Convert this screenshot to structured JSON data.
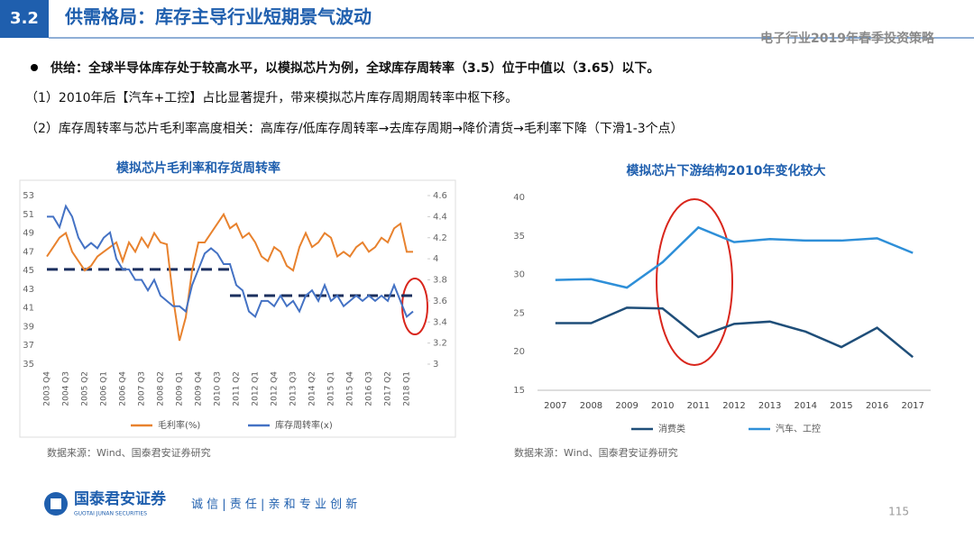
{
  "header": {
    "section_number": "3.2",
    "title": "供需格局：库存主导行业短期景气波动",
    "subtitle": "电子行业2019年春季投资策略"
  },
  "bullets": [
    "供给：全球半导体库存处于较高水平，以模拟芯片为例，全球库存周转率（3.5）位于中值以（3.65）以下。",
    "（1）2010年后【汽车+工控】占比显著提升，带来模拟芯片库存周期周转率中枢下移。",
    "（2）库存周转率与芯片毛利率高度相关：高库存/低库存周转率→去库存周期→降价清货→毛利率下降（下滑1-3个点）"
  ],
  "chart_data": [
    {
      "type": "line",
      "title": "模拟芯片毛利率和存货周转率",
      "categories": [
        "2003 Q4",
        null,
        null,
        "2004 Q3",
        null,
        null,
        "2005 Q2",
        null,
        null,
        "2006 Q1",
        null,
        null,
        "2006 Q4",
        null,
        null,
        "2007 Q3",
        null,
        null,
        "2008 Q2",
        null,
        null,
        "2009 Q1",
        null,
        null,
        "2009 Q4",
        null,
        null,
        "2010 Q3",
        null,
        null,
        "2011 Q2",
        null,
        null,
        "2012 Q1",
        null,
        null,
        "2012 Q4",
        null,
        null,
        "2013 Q3",
        null,
        null,
        "2014 Q2",
        null,
        null,
        "2015 Q1",
        null,
        null,
        "2015 Q4",
        null,
        null,
        "2016 Q3",
        null,
        null,
        "2017 Q2",
        null,
        null,
        "2018 Q1",
        null
      ],
      "series": [
        {
          "name": "毛利率(%)",
          "color": "#e8822e",
          "values": [
            46.5,
            47.5,
            48.5,
            49,
            47,
            46,
            45,
            45.5,
            46.5,
            47,
            47.5,
            48,
            46,
            48,
            47,
            48.5,
            47.5,
            49,
            48,
            47.8,
            42,
            37.5,
            40,
            45,
            48,
            48,
            49,
            50,
            51,
            49.5,
            50,
            48.5,
            49,
            48,
            46.5,
            46,
            47.5,
            47,
            45.5,
            45,
            47.5,
            49,
            47.5,
            48,
            49,
            48.5,
            46.5,
            47,
            46.5,
            47.5,
            48,
            47,
            47.5,
            48.5,
            48,
            49.5,
            50,
            47,
            47
          ]
        },
        {
          "name": "库存周转率(x)",
          "color": "#4472c4",
          "axis": "y2",
          "values": [
            4.4,
            4.4,
            4.3,
            4.5,
            4.4,
            4.2,
            4.1,
            4.15,
            4.1,
            4.2,
            4.25,
            4.0,
            3.9,
            3.9,
            3.8,
            3.8,
            3.7,
            3.8,
            3.65,
            3.6,
            3.55,
            3.55,
            3.5,
            3.75,
            3.9,
            4.05,
            4.1,
            4.05,
            3.95,
            3.95,
            3.75,
            3.7,
            3.5,
            3.45,
            3.6,
            3.6,
            3.55,
            3.65,
            3.55,
            3.6,
            3.5,
            3.65,
            3.7,
            3.6,
            3.75,
            3.6,
            3.65,
            3.55,
            3.6,
            3.65,
            3.6,
            3.65,
            3.6,
            3.65,
            3.6,
            3.75,
            3.6,
            3.45,
            3.5
          ]
        }
      ],
      "reference_lines": [
        {
          "value": 3.9,
          "axis": "y2",
          "from": 0,
          "to": 29
        },
        {
          "value": 3.65,
          "axis": "y2",
          "from": 29,
          "to": 58
        }
      ],
      "ylim": [
        35,
        53
      ],
      "yticks": [
        35,
        37,
        39,
        41,
        43,
        45,
        47,
        49,
        51,
        53
      ],
      "y2lim": [
        3,
        4.6
      ],
      "y2ticks": [
        3,
        3.2,
        3.4,
        3.6,
        3.8,
        4,
        4.2,
        4.4,
        4.6
      ],
      "source": "数据来源：Wind、国泰君安证券研究"
    },
    {
      "type": "line",
      "title": "模拟芯片下游结构2010年变化较大",
      "categories": [
        "2007",
        "2008",
        "2009",
        "2010",
        "2011",
        "2012",
        "2013",
        "2014",
        "2015",
        "2016",
        "2017"
      ],
      "series": [
        {
          "name": "消费类",
          "color": "#1f4e79",
          "values": [
            23.7,
            23.7,
            25.7,
            25.6,
            21.9,
            23.6,
            23.9,
            22.6,
            20.6,
            23.1,
            19.3
          ]
        },
        {
          "name": "汽车、工控",
          "color": "#2e8fd8",
          "values": [
            29.3,
            29.4,
            28.3,
            31.6,
            36.1,
            34.2,
            34.6,
            34.4,
            34.4,
            34.7,
            32.8
          ]
        }
      ],
      "ylim": [
        15,
        40
      ],
      "yticks": [
        15,
        20,
        25,
        30,
        35,
        40
      ],
      "source": "数据来源：Wind、国泰君安证券研究"
    }
  ],
  "footer": {
    "company": "国泰君安证券",
    "company_en": "GUOTAI JUNAN SECURITIES",
    "motto": "诚 信 | 责 任 | 亲 和  专 业  创 新",
    "page": "115"
  }
}
